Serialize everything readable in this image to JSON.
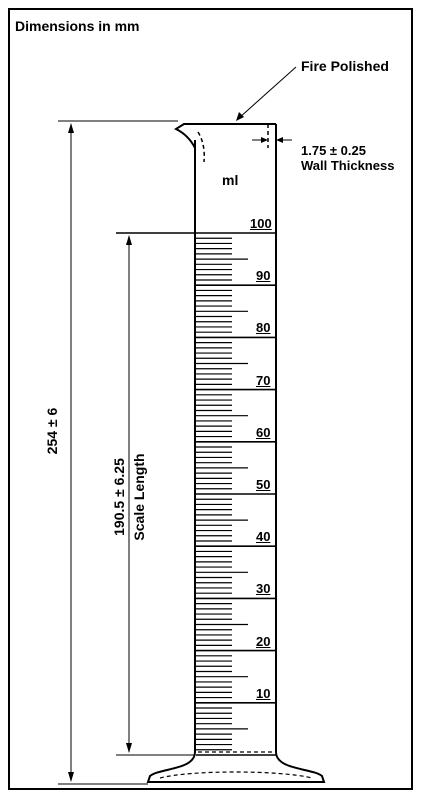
{
  "header": {
    "title": "Dimensions in mm"
  },
  "annotations": {
    "fire_polished": "Fire Polished",
    "wall_thickness_value": "1.75 ± 0.25",
    "wall_thickness_label": "Wall Thickness",
    "unit": "ml",
    "overall_height": "254 ± 6",
    "scale_length_value": "190.5 ± 6.25",
    "scale_length_label": "Scale Length"
  },
  "scale": {
    "labels": [
      "100",
      "90",
      "80",
      "70",
      "60",
      "50",
      "40",
      "30",
      "20",
      "10"
    ]
  },
  "colors": {
    "line": "#000000",
    "background": "#ffffff"
  }
}
